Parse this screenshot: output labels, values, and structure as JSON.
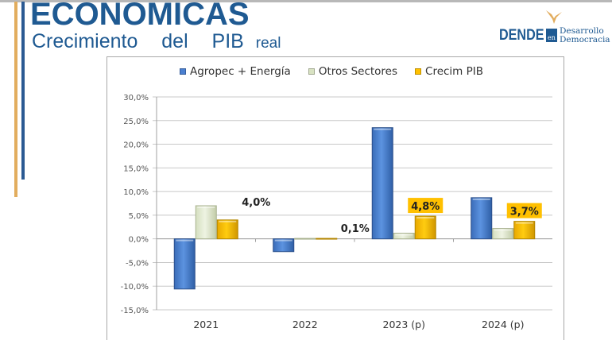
{
  "header": {
    "title": "ECONOMICAS",
    "subtitle": "Crecimiento  del  PIB",
    "subtitle_suffix": "real"
  },
  "logo": {
    "brand": "DENDE",
    "connector": "en",
    "line1": "Desarrollo",
    "line2": "Democracia",
    "icon": "bird-wing-icon"
  },
  "colors": {
    "title_blue": "#1f5a92",
    "accent_gold": "#e2ad5e",
    "series_agro": "#4a7fd0",
    "series_otros": "#e4ecd2",
    "series_pib": "#ffc000"
  },
  "chart_data": {
    "type": "bar",
    "title": "",
    "xlabel": "",
    "ylabel": "",
    "categories": [
      "2021",
      "2022",
      "2023 (p)",
      "2024 (p)"
    ],
    "series": [
      {
        "name": "Agropec + Energía",
        "values": [
          -10.6,
          -2.7,
          23.5,
          8.7
        ]
      },
      {
        "name": "Otros Sectores",
        "values": [
          7.0,
          0.1,
          1.2,
          2.2
        ]
      },
      {
        "name": "Crecim PIB",
        "values": [
          4.0,
          0.1,
          4.8,
          3.7
        ]
      }
    ],
    "data_labels": [
      {
        "series": "Crecim PIB",
        "category": "2021",
        "text": "4,0%",
        "highlighted": false
      },
      {
        "series": "Crecim PIB",
        "category": "2022",
        "text": "0,1%",
        "highlighted": false
      },
      {
        "series": "Crecim PIB",
        "category": "2023 (p)",
        "text": "4,8%",
        "highlighted": true
      },
      {
        "series": "Crecim PIB",
        "category": "2024 (p)",
        "text": "3,7%",
        "highlighted": true
      }
    ],
    "yticks": [
      "-15,0%",
      "-10,0%",
      "-5,0%",
      "0,0%",
      "5,0%",
      "10,0%",
      "15,0%",
      "20,0%",
      "25,0%",
      "30,0%"
    ],
    "ytick_values": [
      -15,
      -10,
      -5,
      0,
      5,
      10,
      15,
      20,
      25,
      30
    ],
    "ylim": [
      -15,
      30
    ],
    "grid": true,
    "legend_position": "top"
  }
}
